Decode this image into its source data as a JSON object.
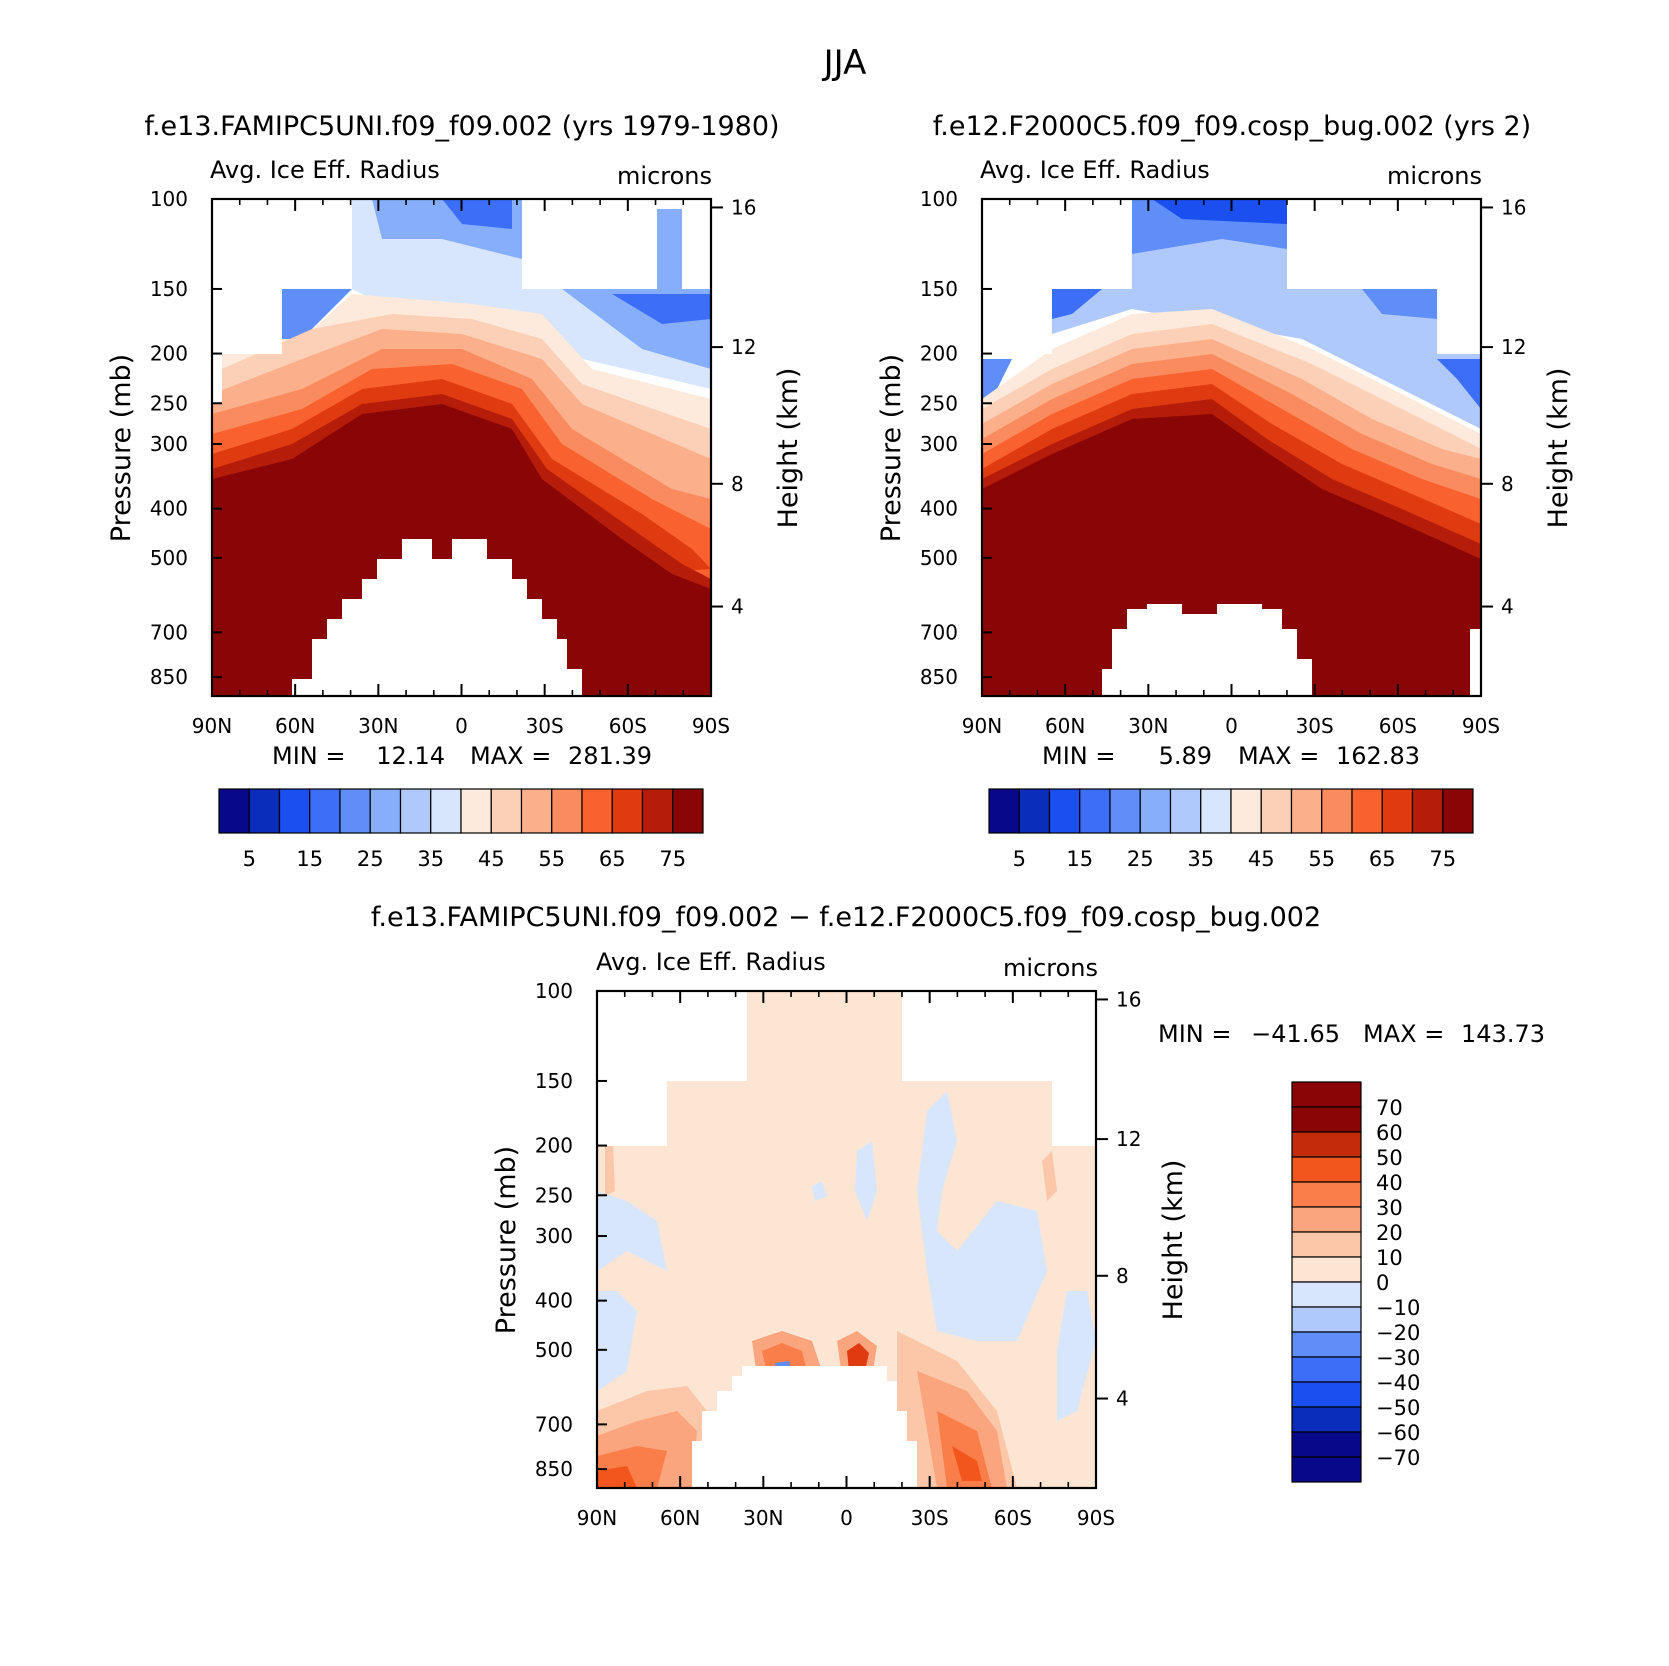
{
  "season": "JJA",
  "colors": {
    "field": [
      "#08088a",
      "#0a2dbb",
      "#1b4ff0",
      "#3d6ef7",
      "#5f8ef9",
      "#86aefb",
      "#b0c9fc",
      "#d7e6fc",
      "#fdeadc",
      "#fcd0b6",
      "#fbaf8a",
      "#fa8b5e",
      "#f9622f",
      "#e03a10",
      "#b51d0a",
      "#8a0606"
    ],
    "diff": [
      "#08088a",
      "#0a2dbb",
      "#1b4ff0",
      "#3d6ef7",
      "#5f8ef9",
      "#b0c9fc",
      "#d7e6fc",
      "#fde5d3",
      "#fcc7a8",
      "#fba57e",
      "#f97e4a",
      "#f2561d",
      "#c32b0b",
      "#8a0606"
    ]
  },
  "chart_data": [
    {
      "type": "heatmap",
      "title": "f.e13.FAMIPC5UNI.f09_f09.002 (yrs 1979-1980)",
      "left_label": "Avg. Ice Eff. Radius",
      "right_label": "microns",
      "ylabel": "Pressure (mb)",
      "ylabel_right": "Height (km)",
      "y_ticks": [
        "100",
        "150",
        "200",
        "250",
        "300",
        "400",
        "500",
        "700",
        "850"
      ],
      "y_right_ticks": [
        "16",
        "12",
        "8",
        "4"
      ],
      "x_ticks": [
        "90N",
        "60N",
        "30N",
        "0",
        "30S",
        "60S",
        "90S"
      ],
      "stats": {
        "min_label": "MIN =",
        "min": "12.14",
        "max_label": "MAX =",
        "max": "281.39"
      },
      "colorbar": {
        "orientation": "horizontal",
        "labels": [
          "5",
          "15",
          "25",
          "35",
          "45",
          "55",
          "65",
          "75"
        ]
      },
      "contour_levels": [
        0,
        5,
        10,
        15,
        20,
        25,
        30,
        35,
        40,
        45,
        50,
        55,
        60,
        65,
        70,
        75
      ]
    },
    {
      "type": "heatmap",
      "title": "f.e12.F2000C5.f09_f09.cosp_bug.002 (yrs 2)",
      "left_label": "Avg. Ice Eff. Radius",
      "right_label": "microns",
      "ylabel": "Pressure (mb)",
      "ylabel_right": "Height (km)",
      "y_ticks": [
        "100",
        "150",
        "200",
        "250",
        "300",
        "400",
        "500",
        "700",
        "850"
      ],
      "y_right_ticks": [
        "16",
        "12",
        "8",
        "4"
      ],
      "x_ticks": [
        "90N",
        "60N",
        "30N",
        "0",
        "30S",
        "60S",
        "90S"
      ],
      "stats": {
        "min_label": "MIN =",
        "min": "5.89",
        "max_label": "MAX =",
        "max": "162.83"
      },
      "colorbar": {
        "orientation": "horizontal",
        "labels": [
          "5",
          "15",
          "25",
          "35",
          "45",
          "55",
          "65",
          "75"
        ]
      },
      "contour_levels": [
        0,
        5,
        10,
        15,
        20,
        25,
        30,
        35,
        40,
        45,
        50,
        55,
        60,
        65,
        70,
        75
      ]
    },
    {
      "type": "heatmap",
      "title": "f.e13.FAMIPC5UNI.f09_f09.002 − f.e12.F2000C5.f09_f09.cosp_bug.002",
      "left_label": "Avg. Ice Eff. Radius",
      "right_label": "microns",
      "ylabel": "Pressure (mb)",
      "ylabel_right": "Height (km)",
      "y_ticks": [
        "100",
        "150",
        "200",
        "250",
        "300",
        "400",
        "500",
        "700",
        "850"
      ],
      "y_right_ticks": [
        "16",
        "12",
        "8",
        "4"
      ],
      "x_ticks": [
        "90N",
        "60N",
        "30N",
        "0",
        "30S",
        "60S",
        "90S"
      ],
      "stats": {
        "min_label": "MIN =",
        "min": "−41.65",
        "max_label": "MAX =",
        "max": "143.73"
      },
      "colorbar": {
        "orientation": "vertical",
        "labels": [
          "70",
          "60",
          "50",
          "40",
          "30",
          "20",
          "10",
          "0",
          "−10",
          "−20",
          "−30",
          "−40",
          "−50",
          "−60",
          "−70"
        ]
      },
      "contour_levels": [
        -70,
        -60,
        -50,
        -40,
        -30,
        -20,
        -10,
        0,
        10,
        20,
        30,
        40,
        50,
        60,
        70
      ]
    }
  ]
}
